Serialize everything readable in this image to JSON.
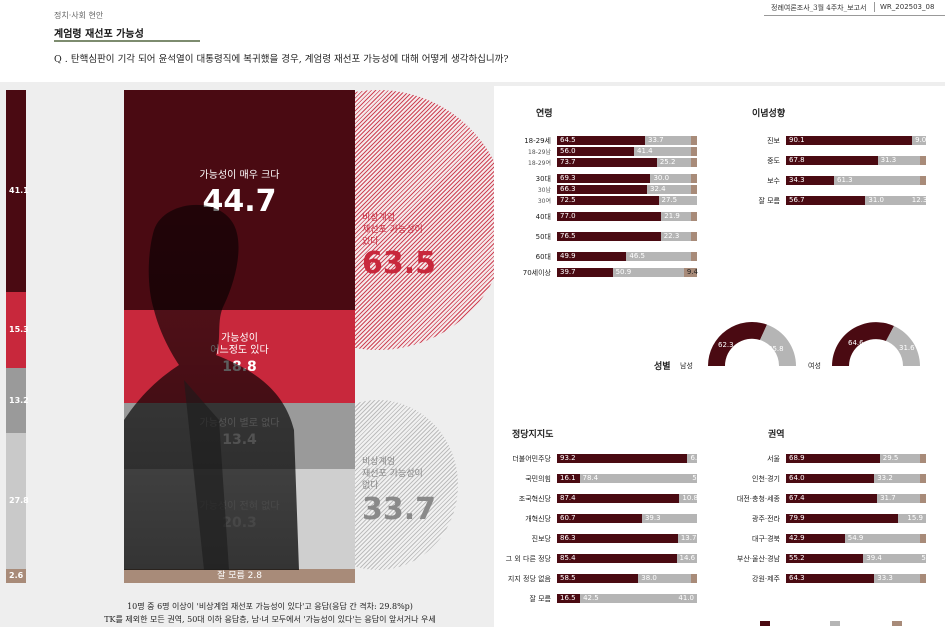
{
  "header": {
    "breadcrumb": "정치·사회 현안",
    "section_title": "계엄령 재선포 가능성",
    "doc_id": "정례여론조사_3월 4주차_보고서",
    "doc_code": "WR_202503_08",
    "question": "Q . 탄핵심판이 기각 되어 윤석열이 대통령직에 복귀했을 경우, 계엄령 재선포 가능성에 대해 어떻게 생각하십니까?"
  },
  "left_bar": {
    "values": [
      "41.1",
      "15.3",
      "13.2",
      "27.8",
      "2.6"
    ]
  },
  "main": {
    "segments": [
      {
        "label": "가능성이 매우 크다",
        "value": "44.7",
        "pct": 44.7
      },
      {
        "label": "가능성이\n어느정도 있다",
        "value": "18.8",
        "pct": 18.8
      },
      {
        "label": "가능성이 별로 없다",
        "value": "13.4",
        "pct": 13.4
      },
      {
        "label": "가능성이 전혀 없다",
        "value": "20.3",
        "pct": 20.3
      },
      {
        "label": "잘 모름",
        "value": "2.8",
        "pct": 2.8
      }
    ],
    "yes_group": {
      "label": "비상계엄\n재선포 가능성이\n있다",
      "value": "63.5"
    },
    "no_group": {
      "label": "비상계엄\n재선포 가능성이\n없다",
      "value": "33.7"
    }
  },
  "colors": {
    "dark_red": "#4a0a12",
    "red": "#c8283c",
    "grey": "#b5b5b5",
    "tan": "#a88b79"
  },
  "age": {
    "title": "연령",
    "rows": [
      {
        "label": "18-29세",
        "sub": false,
        "a": 64.5,
        "b": 33.7
      },
      {
        "label": "18-29남",
        "sub": true,
        "a": 56.0,
        "b": 41.4
      },
      {
        "label": "18-29여",
        "sub": true,
        "a": 73.7,
        "b": 25.2
      },
      {
        "label": "30대",
        "sub": false,
        "a": 69.3,
        "b": 30.0
      },
      {
        "label": "30남",
        "sub": true,
        "a": 66.3,
        "b": 32.4
      },
      {
        "label": "30여",
        "sub": true,
        "a": 72.5,
        "b": 27.5
      },
      {
        "label": "40대",
        "sub": false,
        "a": 77.0,
        "b": 21.9
      },
      {
        "label": "50대",
        "sub": false,
        "a": 76.5,
        "b": 22.3
      },
      {
        "label": "60대",
        "sub": false,
        "a": 49.9,
        "b": 46.5
      },
      {
        "label": "70세이상",
        "sub": false,
        "a": 39.7,
        "b": 50.9,
        "c": "9.4"
      }
    ]
  },
  "ideology": {
    "title": "이념성향",
    "rows": [
      {
        "label": "진보",
        "a": 90.1,
        "b": 0,
        "end": "9.0"
      },
      {
        "label": "중도",
        "a": 67.8,
        "b": 31.3
      },
      {
        "label": "보수",
        "a": 34.3,
        "b": 61.3
      },
      {
        "label": "잘 모름",
        "a": 56.7,
        "b": 31.0,
        "end": "12.3"
      }
    ]
  },
  "gender": {
    "title": "성별",
    "male": {
      "label": "남성",
      "a": "62.3",
      "b": "35.8"
    },
    "female": {
      "label": "여성",
      "a": "64.6",
      "b": "31.6"
    }
  },
  "party": {
    "title": "정당지지도",
    "rows": [
      {
        "label": "더불어민주당",
        "a": 93.2,
        "b": 0,
        "end": "6.0"
      },
      {
        "label": "국민의힘",
        "a": 16.1,
        "b": 78.4,
        "end": "5.5"
      },
      {
        "label": "조국혁신당",
        "a": 87.4,
        "b": 0,
        "end": "10.8"
      },
      {
        "label": "개혁신당",
        "a": 60.7,
        "b": 39.3
      },
      {
        "label": "진보당",
        "a": 86.3,
        "b": 0,
        "end": "13.7"
      },
      {
        "label": "그 외 다른 정당",
        "a": 85.4,
        "b": 0,
        "end": "14.6"
      },
      {
        "label": "지지 정당 없음",
        "a": 58.5,
        "b": 38.0
      },
      {
        "label": "잘 모름",
        "a": 16.5,
        "b": 42.5,
        "end": "41.0"
      }
    ]
  },
  "region": {
    "title": "권역",
    "rows": [
      {
        "label": "서울",
        "a": 68.9,
        "b": 29.5
      },
      {
        "label": "인천·경기",
        "a": 64.0,
        "b": 33.2
      },
      {
        "label": "대전·충청·세종",
        "a": 67.4,
        "b": 31.7
      },
      {
        "label": "광주·전라",
        "a": 79.9,
        "b": 0,
        "end": "15.9"
      },
      {
        "label": "대구·경북",
        "a": 42.9,
        "b": 54.9
      },
      {
        "label": "부산·울산·경남",
        "a": 55.2,
        "b": 39.4,
        "end": "5.4"
      },
      {
        "label": "강원·제주",
        "a": 64.3,
        "b": 33.3
      }
    ]
  },
  "notes": {
    "line1": "10명 중 6명 이상이 '비상계엄 재선포 가능성이 있다'고 응답(응답 간 격차: 29.8%p)",
    "line2": "TK를 제외한 모든 권역, 50대 이하 응답층, 남·녀 모두에서 '가능성이 있다'는 응답이 앞서거나 우세"
  }
}
